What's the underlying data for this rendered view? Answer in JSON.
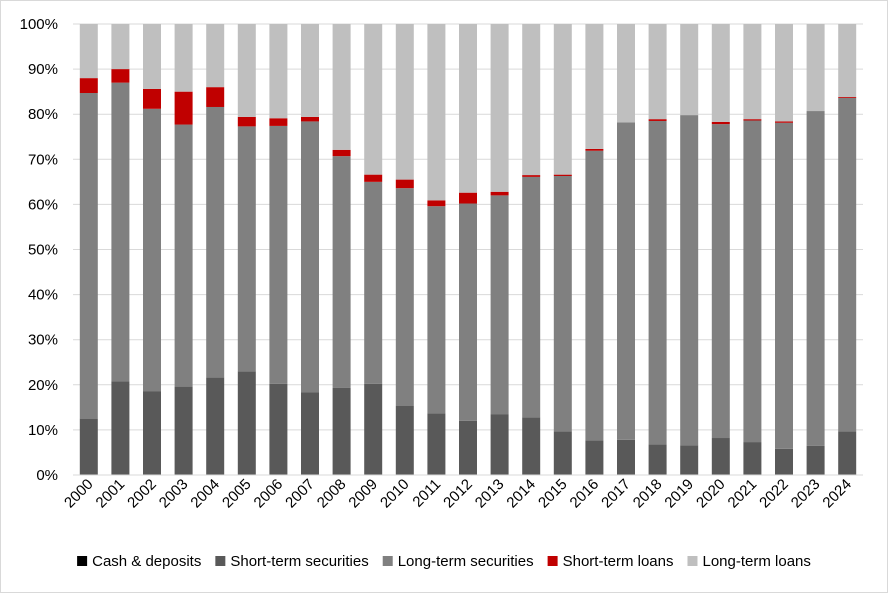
{
  "chart_data": {
    "type": "bar",
    "stacked": true,
    "percent": true,
    "title": "",
    "xlabel": "",
    "ylabel": "",
    "ylim": [
      0,
      100
    ],
    "yticks": [
      "0%",
      "10%",
      "20%",
      "30%",
      "40%",
      "50%",
      "60%",
      "70%",
      "80%",
      "90%",
      "100%"
    ],
    "categories": [
      "2000",
      "2001",
      "2002",
      "2003",
      "2004",
      "2005",
      "2006",
      "2007",
      "2008",
      "2009",
      "2010",
      "2011",
      "2012",
      "2013",
      "2014",
      "2015",
      "2016",
      "2017",
      "2018",
      "2019",
      "2020",
      "2021",
      "2022",
      "2023",
      "2024"
    ],
    "series": [
      {
        "name": "Cash & deposits",
        "color": "#000000",
        "values": [
          0,
          0,
          0,
          0,
          0,
          0,
          0,
          0,
          0,
          0,
          0,
          0,
          0,
          0,
          0,
          0,
          0,
          0,
          0,
          0,
          0,
          0,
          0,
          0,
          0
        ]
      },
      {
        "name": "Short-term securities",
        "color": "#595959",
        "values": [
          12.5,
          20.8,
          18.6,
          19.6,
          21.6,
          23,
          20.2,
          18.3,
          19.3,
          20.2,
          15.3,
          13.7,
          12,
          13.5,
          12.8,
          9.7,
          7.7,
          7.8,
          6.8,
          6.6,
          8.2,
          7.3,
          5.8,
          6.5,
          9.7
        ]
      },
      {
        "name": "Long-term securities",
        "color": "#808080",
        "values": [
          72.2,
          66.2,
          62.6,
          58.1,
          60,
          54.3,
          57.2,
          60.1,
          51.4,
          44.8,
          48.3,
          45.9,
          48.2,
          48.5,
          53.3,
          56.6,
          64.2,
          70.4,
          71.7,
          73.2,
          69.6,
          71.3,
          72.3,
          74.2,
          73.9
        ]
      },
      {
        "name": "Short-term loans",
        "color": "#c00000",
        "values": [
          3.3,
          3,
          4.4,
          7.3,
          4.4,
          2.1,
          1.7,
          1,
          1.4,
          1.6,
          1.9,
          1.3,
          2.4,
          0.8,
          0.4,
          0.3,
          0.4,
          0,
          0.4,
          0,
          0.5,
          0.3,
          0.3,
          0,
          0.2
        ]
      },
      {
        "name": "Long-term loans",
        "color": "#bfbfbf",
        "values": [
          12,
          10,
          14.4,
          15,
          14,
          20.6,
          20.9,
          20.6,
          27.9,
          33.4,
          34.5,
          39.1,
          37.4,
          37.2,
          33.5,
          33.4,
          27.7,
          21.8,
          21.1,
          20.2,
          21.7,
          21.1,
          21.6,
          19.3,
          16.2
        ]
      }
    ],
    "grid": true,
    "legend": "bottom"
  }
}
